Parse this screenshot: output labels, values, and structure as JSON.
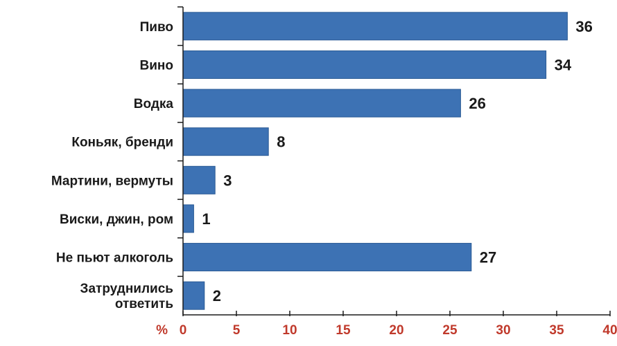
{
  "chart_data": {
    "type": "bar",
    "orientation": "horizontal",
    "title": "",
    "xlabel": "",
    "ylabel": "",
    "unit_label": "%",
    "categories": [
      "Пиво",
      "Вино",
      "Водка",
      "Коньяк, бренди",
      "Мартини, вермуты",
      "Виски, джин, ром",
      "Не пьют алкоголь",
      "Затруднились\nответить"
    ],
    "values": [
      36,
      34,
      26,
      8,
      3,
      1,
      27,
      2
    ],
    "data_labels": [
      "36",
      "34",
      "26",
      "8",
      "3",
      "1",
      "27",
      "2"
    ],
    "xlim": [
      0,
      40
    ],
    "xticks": [
      0,
      5,
      10,
      15,
      20,
      25,
      30,
      35,
      40
    ],
    "xtick_labels": [
      "0",
      "5",
      "10",
      "15",
      "20",
      "25",
      "30",
      "35",
      "40"
    ],
    "grid": false,
    "legend": "none",
    "bar_color": "#3d72b4",
    "bar_edge_color": "#2a5a94",
    "tick_label_color": "#c0392b",
    "axis_color": "#1a1a1a"
  }
}
